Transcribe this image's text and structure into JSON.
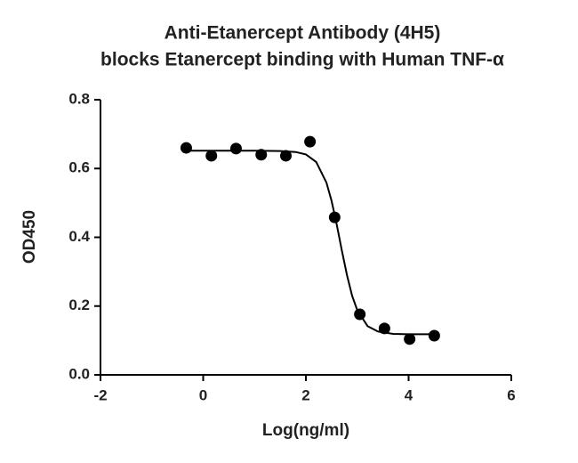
{
  "chart_data": {
    "type": "scatter",
    "title": [
      "Anti-Etanercept Antibody (4H5)",
      "blocks Etanercept binding with Human TNF-α"
    ],
    "x_label": "Log(ng/ml)",
    "y_label": "OD450",
    "xlim": [
      -2,
      6
    ],
    "xticks": [
      -2,
      0,
      2,
      4,
      6
    ],
    "ylim": [
      0,
      0.8
    ],
    "yticks": [
      {
        "value": 0,
        "label": "0.0"
      },
      0.2,
      0.4,
      0.6,
      0.8
    ],
    "color": "#000000",
    "points": {
      "x": [
        -0.33,
        0.16,
        0.64,
        1.13,
        1.61,
        2.08,
        2.56,
        3.05,
        3.53,
        4.02,
        4.5
      ],
      "values": [
        0.66,
        0.637,
        0.658,
        0.64,
        0.637,
        0.678,
        0.458,
        0.176,
        0.135,
        0.104,
        0.114
      ]
    },
    "fit": {
      "x": [
        -0.3,
        0,
        0.5,
        1,
        1.5,
        1.8,
        2,
        2.2,
        2.4,
        2.5,
        2.6,
        2.7,
        2.8,
        2.9,
        3,
        3.2,
        3.4,
        3.7,
        4,
        4.5
      ],
      "values": [
        0.652,
        0.652,
        0.652,
        0.652,
        0.651,
        0.648,
        0.641,
        0.619,
        0.559,
        0.506,
        0.438,
        0.362,
        0.29,
        0.23,
        0.188,
        0.142,
        0.126,
        0.119,
        0.118,
        0.118
      ]
    }
  }
}
